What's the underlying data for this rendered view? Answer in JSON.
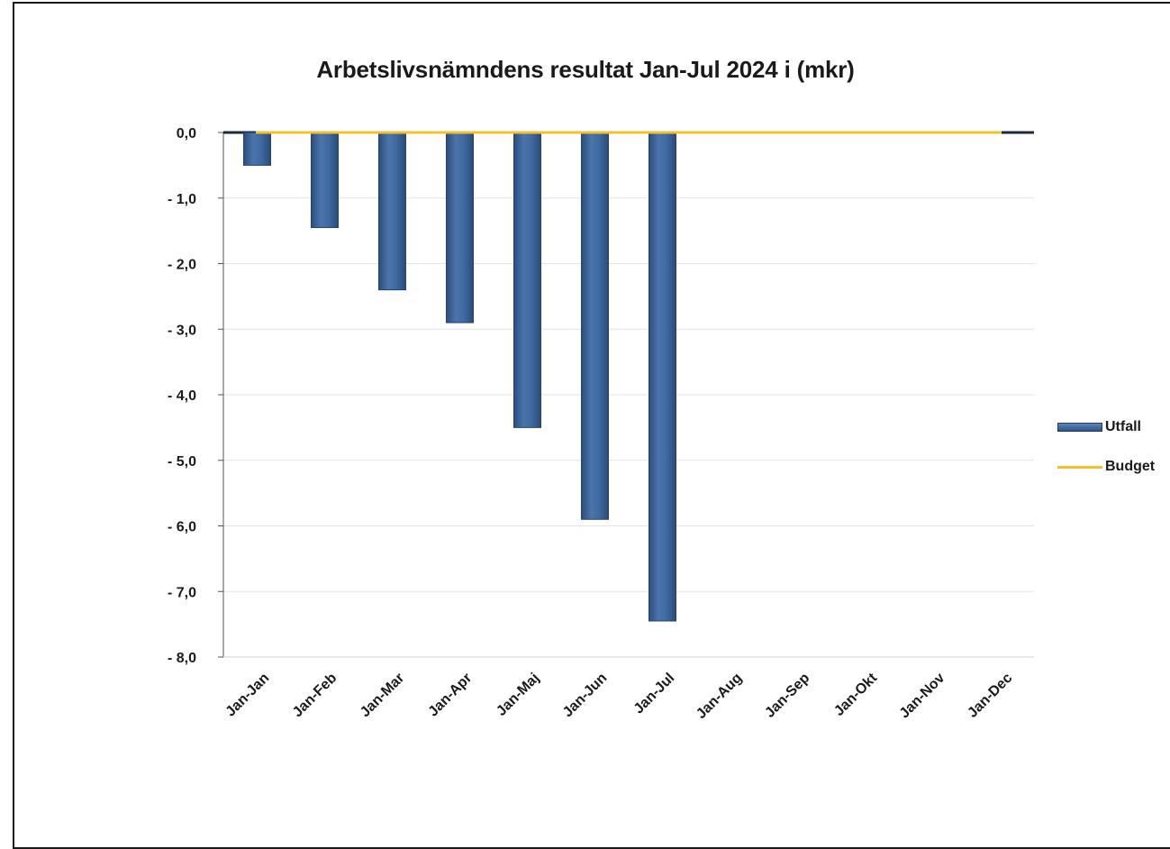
{
  "chart_data": {
    "type": "bar",
    "title": "Arbetslivsnämndens resultat Jan-Jul 2024 i (mkr)",
    "xlabel": "",
    "ylabel": "",
    "categories": [
      "Jan-Jan",
      "Jan-Feb",
      "Jan-Mar",
      "Jan-Apr",
      "Jan-Maj",
      "Jan-Jun",
      "Jan-Jul",
      "Jan-Aug",
      "Jan-Sep",
      "Jan-Okt",
      "Jan-Nov",
      "Jan-Dec"
    ],
    "series": [
      {
        "name": "Utfall",
        "type": "bar",
        "color": "#3d659b",
        "values": [
          -0.5,
          -1.45,
          -2.4,
          -2.9,
          -4.5,
          -5.9,
          -7.45,
          null,
          null,
          null,
          null,
          null
        ]
      },
      {
        "name": "Budget",
        "type": "line",
        "color": "#f2c12e",
        "values": [
          0,
          0,
          0,
          0,
          0,
          0,
          0,
          0,
          0,
          0,
          0,
          0
        ]
      }
    ],
    "ylim": [
      -8,
      0
    ],
    "yticks": [
      0,
      -1,
      -2,
      -3,
      -4,
      -5,
      -6,
      -7,
      -8
    ],
    "ytick_labels": [
      "0,0",
      "- 1,0",
      "- 2,0",
      "- 3,0",
      "- 4,0",
      "- 5,0",
      "- 6,0",
      "- 7,0",
      "- 8,0"
    ],
    "grid": true,
    "legend_position": "right"
  }
}
